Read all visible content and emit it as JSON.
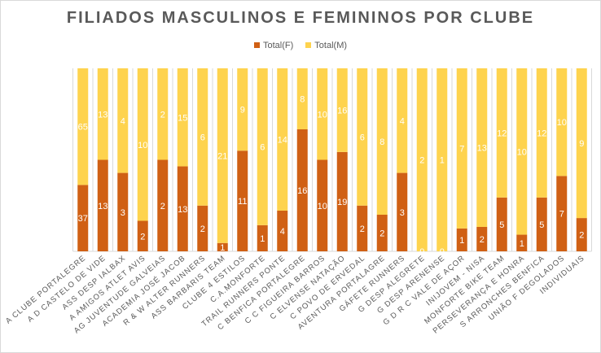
{
  "chart_data": {
    "type": "bar",
    "stacked": "percent",
    "title": "FILIADOS MASCULINOS E FEMININOS POR CLUBE",
    "legend_position": "top",
    "categories": [
      "A CLUBE PORTALEGRE",
      "A D CASTELO DE VIDE",
      "ASS DESP IALBAX",
      "A AMIGOS ATLET AVIS",
      "AG JUVENTUDE GALVEIAS",
      "ACADEMIA JOSÉ JACOB",
      "R & W ALTER RUNNERS",
      "ASS BARBARIS TEAM",
      "CLUBE 4 ESTILOS",
      "C.A.MONFORTE",
      "TRAIL RUNNERS PONTE",
      "C BENFICA PORTALEGRE",
      "C C FIGUEIRA BARROS",
      "C ELVENSE NATAÇÃO",
      "C POVO DE ERVEDAL",
      "AVENTURA PORTALAGRE",
      "GÁFETE RUNNERS",
      "G DESP ALEGRETE",
      "G DESP ARENENSE",
      "G D R C VALE DE AÇOR",
      "INIJOVEM - NISA",
      "MONFORTE BIKE TEAM",
      "PERSEVERANÇA E HONRA",
      "S ARRONCHES BENFICA",
      "UNIÃO F DEGOLADOS",
      "INDIVIDUAIS"
    ],
    "series": [
      {
        "name": "Total(F)",
        "color": "#d06014",
        "values": [
          37,
          13,
          3,
          2,
          2,
          13,
          2,
          1,
          11,
          1,
          4,
          16,
          10,
          19,
          2,
          2,
          3,
          0,
          0,
          1,
          2,
          5,
          1,
          5,
          7,
          2
        ]
      },
      {
        "name": "Total(M)",
        "color": "#fed34e",
        "values": [
          65,
          13,
          4,
          10,
          2,
          15,
          6,
          21,
          9,
          6,
          14,
          8,
          10,
          16,
          6,
          8,
          4,
          2,
          1,
          7,
          13,
          12,
          10,
          12,
          10,
          9
        ]
      }
    ],
    "xlabel": "",
    "ylabel": "",
    "ylim": [
      0,
      100
    ]
  }
}
